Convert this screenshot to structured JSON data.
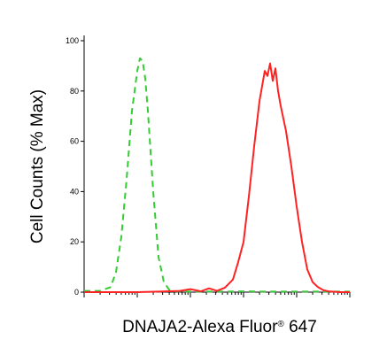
{
  "chart_data": {
    "type": "line",
    "xlabel_main": "DNAJA2-Alexa Fluor",
    "xlabel_reg": "®",
    "xlabel_tail": " 647",
    "ylabel": "Cell Counts (% Max)",
    "x_scale": "log",
    "xlim_decades": [
      0,
      5
    ],
    "ylim": [
      0,
      100
    ],
    "y_ticks": [
      "0",
      "20",
      "40",
      "60",
      "80",
      "100"
    ],
    "series": [
      {
        "color": "#33cc33",
        "dash": "dashed",
        "x": [
          0.0,
          0.3,
          0.5,
          0.6,
          0.7,
          0.8,
          0.9,
          1.0,
          1.05,
          1.1,
          1.15,
          1.2,
          1.3,
          1.4,
          1.5,
          1.6,
          1.7,
          1.9,
          2.2,
          2.6,
          3.0,
          3.4,
          3.8,
          4.2,
          4.6,
          5.0
        ],
        "y": [
          0.5,
          0.5,
          2,
          8,
          22,
          45,
          72,
          88,
          93,
          92,
          85,
          72,
          40,
          14,
          4,
          1,
          0.3,
          0.2,
          0.2,
          0.2,
          0.3,
          0.2,
          0.2,
          0.2,
          0.2,
          0.2
        ]
      },
      {
        "color": "#ff2222",
        "dash": "solid",
        "x": [
          0.0,
          0.6,
          1.0,
          1.4,
          1.8,
          2.0,
          2.2,
          2.35,
          2.5,
          2.65,
          2.8,
          2.9,
          3.0,
          3.1,
          3.2,
          3.3,
          3.4,
          3.45,
          3.5,
          3.55,
          3.6,
          3.65,
          3.7,
          3.8,
          3.9,
          4.0,
          4.1,
          4.2,
          4.3,
          4.4,
          4.5,
          4.6,
          4.8,
          5.0
        ],
        "y": [
          0,
          0,
          0,
          0.2,
          0.5,
          1.2,
          0.3,
          1.5,
          0.5,
          1.8,
          5,
          12,
          20,
          38,
          58,
          76,
          88,
          86,
          91,
          84,
          89,
          80,
          74,
          64,
          50,
          34,
          20,
          9,
          4,
          2,
          0.8,
          0.3,
          0,
          0
        ]
      }
    ]
  }
}
